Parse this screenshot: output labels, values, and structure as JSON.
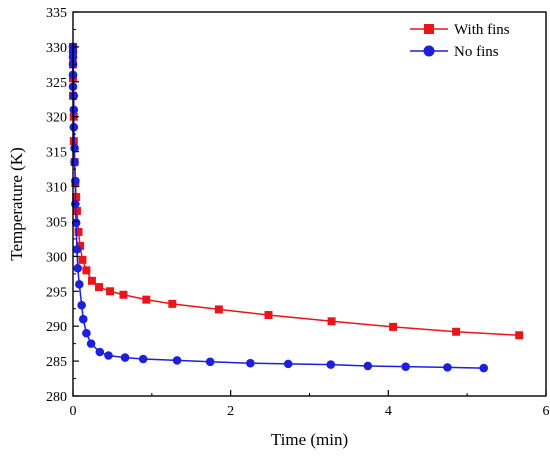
{
  "chart_data": {
    "type": "line",
    "xlabel": "Time (min)",
    "ylabel": "Temperature (K)",
    "xlim": [
      0,
      6
    ],
    "ylim": [
      280,
      335
    ],
    "xticks": [
      "0",
      "2",
      "4",
      "6"
    ],
    "yticks": [
      "280",
      "285",
      "290",
      "295",
      "300",
      "305",
      "310",
      "315",
      "320",
      "325",
      "330",
      "335"
    ],
    "grid": false,
    "legend_position": "top-right",
    "series": [
      {
        "name": "With fins",
        "color": "#e8161b",
        "marker": "square",
        "points": [
          [
            0.0,
            330.0
          ],
          [
            0.0,
            329.0
          ],
          [
            0.0,
            327.5
          ],
          [
            0.0,
            325.5
          ],
          [
            0.0,
            323.0
          ],
          [
            0.01,
            320.0
          ],
          [
            0.01,
            316.5
          ],
          [
            0.02,
            313.5
          ],
          [
            0.03,
            310.5
          ],
          [
            0.04,
            308.5
          ],
          [
            0.05,
            306.5
          ],
          [
            0.07,
            303.5
          ],
          [
            0.09,
            301.5
          ],
          [
            0.12,
            299.5
          ],
          [
            0.17,
            298.0
          ],
          [
            0.24,
            296.5
          ],
          [
            0.33,
            295.6
          ],
          [
            0.47,
            295.0
          ],
          [
            0.64,
            294.5
          ],
          [
            0.93,
            293.8
          ],
          [
            1.26,
            293.2
          ],
          [
            1.85,
            292.4
          ],
          [
            2.48,
            291.6
          ],
          [
            3.28,
            290.7
          ],
          [
            4.06,
            289.9
          ],
          [
            4.86,
            289.2
          ],
          [
            5.66,
            288.7
          ]
        ]
      },
      {
        "name": "No fins",
        "color": "#1c20d8",
        "marker": "circle",
        "points": [
          [
            0.0,
            330.0
          ],
          [
            0.0,
            329.3
          ],
          [
            0.0,
            328.5
          ],
          [
            0.0,
            327.5
          ],
          [
            0.0,
            326.0
          ],
          [
            0.0,
            324.3
          ],
          [
            0.01,
            323.0
          ],
          [
            0.01,
            321.0
          ],
          [
            0.01,
            318.5
          ],
          [
            0.02,
            315.5
          ],
          [
            0.02,
            313.5
          ],
          [
            0.03,
            310.8
          ],
          [
            0.03,
            307.5
          ],
          [
            0.04,
            304.8
          ],
          [
            0.05,
            301.0
          ],
          [
            0.06,
            298.3
          ],
          [
            0.08,
            296.0
          ],
          [
            0.11,
            293.0
          ],
          [
            0.13,
            291.0
          ],
          [
            0.17,
            289.0
          ],
          [
            0.23,
            287.5
          ],
          [
            0.34,
            286.3
          ],
          [
            0.45,
            285.8
          ],
          [
            0.66,
            285.5
          ],
          [
            0.89,
            285.3
          ],
          [
            1.32,
            285.1
          ],
          [
            1.74,
            284.9
          ],
          [
            2.25,
            284.7
          ],
          [
            2.73,
            284.6
          ],
          [
            3.27,
            284.5
          ],
          [
            3.74,
            284.3
          ],
          [
            4.22,
            284.2
          ],
          [
            4.75,
            284.1
          ],
          [
            5.21,
            284.0
          ]
        ]
      }
    ]
  }
}
